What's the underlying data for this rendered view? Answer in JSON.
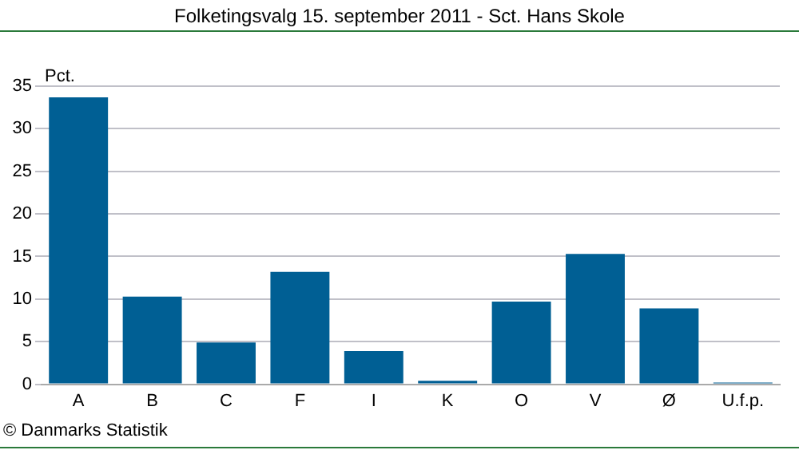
{
  "chart_data": {
    "type": "bar",
    "title": "Folketingsvalg 15. september 2011 - Sct. Hans Skole",
    "ylabel": "Pct.",
    "categories": [
      "A",
      "B",
      "C",
      "F",
      "I",
      "K",
      "O",
      "V",
      "Ø",
      "U.f.p."
    ],
    "values": [
      33.7,
      10.3,
      4.9,
      13.2,
      3.9,
      0.4,
      9.7,
      15.3,
      8.9,
      0.2
    ],
    "color": "#005f94",
    "ylim": [
      0,
      35
    ],
    "yticks": [
      0,
      5,
      10,
      15,
      20,
      25,
      30,
      35
    ],
    "grid": "y",
    "annotations": [
      "© Danmarks Statistik"
    ]
  }
}
